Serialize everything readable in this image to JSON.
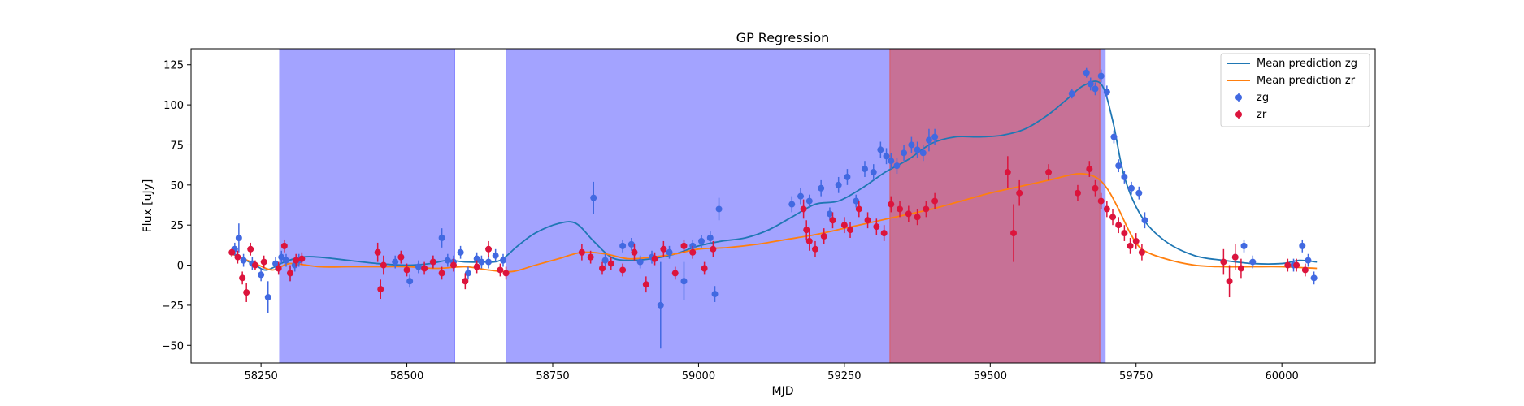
{
  "chart_data": {
    "type": "scatter",
    "title": "GP Regression",
    "xlabel": "MJD",
    "ylabel": "Flux [uJy]",
    "xlim": [
      58130,
      60160
    ],
    "ylim": [
      -61,
      135
    ],
    "xticks": [
      58250,
      58500,
      58750,
      59000,
      59250,
      59500,
      59750,
      60000
    ],
    "yticks": [
      -50,
      -25,
      0,
      25,
      50,
      75,
      100,
      125
    ],
    "grid": false,
    "legend_placement": "top-right",
    "legend": [
      {
        "label": "Mean prediction zg",
        "kind": "line",
        "color": "#1f77b4"
      },
      {
        "label": "Mean prediction zr",
        "kind": "line",
        "color": "#ff7f0e"
      },
      {
        "label": "zg",
        "kind": "marker",
        "color": "#4169e1"
      },
      {
        "label": "zr",
        "kind": "marker",
        "color": "#dc143c"
      }
    ],
    "shaded_regions": [
      {
        "x0": 58282,
        "x1": 58582,
        "color": "#6666ff",
        "opacity": 0.6
      },
      {
        "x0": 58670,
        "x1": 59697,
        "color": "#6666ff",
        "opacity": 0.6
      },
      {
        "x0": 59328,
        "x1": 59688,
        "color": "#e05050",
        "opacity": 0.6
      }
    ],
    "series": [
      {
        "name": "Mean prediction zg",
        "kind": "line",
        "color": "#1f77b4",
        "x": [
          58200,
          58240,
          58260,
          58290,
          58320,
          58350,
          58400,
          58450,
          58500,
          58540,
          58570,
          58600,
          58630,
          58660,
          58690,
          58720,
          58760,
          58790,
          58820,
          58850,
          58880,
          58920,
          58960,
          59000,
          59040,
          59080,
          59120,
          59160,
          59200,
          59240,
          59280,
          59320,
          59360,
          59400,
          59440,
          59480,
          59520,
          59560,
          59600,
          59630,
          59660,
          59690,
          59710,
          59730,
          59760,
          59800,
          59850,
          59900,
          59950,
          60000,
          60030,
          60060
        ],
        "y": [
          8,
          0,
          -3,
          2,
          5,
          5,
          3,
          1,
          0,
          1,
          3,
          2,
          2,
          3,
          12,
          20,
          26,
          26,
          15,
          5,
          3,
          4,
          7,
          12,
          15,
          17,
          22,
          30,
          38,
          40,
          48,
          58,
          66,
          76,
          80,
          80,
          81,
          85,
          94,
          103,
          112,
          113,
          90,
          55,
          30,
          15,
          6,
          3,
          1,
          1,
          3,
          2
        ]
      },
      {
        "name": "Mean prediction zr",
        "kind": "line",
        "color": "#ff7f0e",
        "x": [
          58200,
          58240,
          58270,
          58300,
          58350,
          58400,
          58450,
          58500,
          58550,
          58600,
          58640,
          58680,
          58720,
          58760,
          58800,
          58840,
          58880,
          58920,
          58960,
          59000,
          59050,
          59100,
          59150,
          59200,
          59250,
          59300,
          59350,
          59400,
          59450,
          59500,
          59550,
          59600,
          59650,
          59680,
          59700,
          59720,
          59740,
          59760,
          59800,
          59850,
          59900,
          59950,
          60000,
          60060
        ],
        "y": [
          7,
          1,
          -3,
          1,
          -1,
          -1,
          -1,
          -1,
          -2,
          -1,
          -3,
          -4,
          0,
          4,
          8,
          7,
          4,
          5,
          7,
          10,
          11,
          13,
          16,
          19,
          23,
          27,
          31,
          35,
          40,
          45,
          49,
          53,
          57,
          55,
          48,
          35,
          20,
          10,
          4,
          0,
          -1,
          -1,
          -1,
          -2
        ]
      },
      {
        "name": "zg",
        "kind": "errorbar",
        "color": "#4169e1",
        "x": [
          58205,
          58212,
          58220,
          58235,
          58250,
          58262,
          58275,
          58285,
          58293,
          58300,
          58308,
          58315,
          58480,
          58490,
          58505,
          58520,
          58545,
          58560,
          58570,
          58580,
          58592,
          58605,
          58620,
          58628,
          58640,
          58652,
          58665,
          58820,
          58840,
          58870,
          58885,
          58900,
          58920,
          58935,
          58950,
          58975,
          58990,
          59005,
          59020,
          59028,
          59035,
          59160,
          59175,
          59190,
          59210,
          59225,
          59240,
          59255,
          59270,
          59285,
          59300,
          59312,
          59322,
          59330,
          59340,
          59352,
          59365,
          59375,
          59385,
          59395,
          59405,
          59640,
          59665,
          59672,
          59680,
          59690,
          59700,
          59712,
          59720,
          59730,
          59742,
          59755,
          59765,
          59920,
          59935,
          59950,
          60020,
          60035,
          60045,
          60055
        ],
        "y": [
          10,
          17,
          3,
          1,
          -6,
          -20,
          1,
          5,
          3,
          -5,
          0,
          3,
          2,
          5,
          -10,
          -1,
          2,
          17,
          3,
          2,
          8,
          -5,
          4,
          2,
          2,
          6,
          3,
          42,
          3,
          12,
          13,
          2,
          5,
          -25,
          8,
          -10,
          12,
          15,
          17,
          -18,
          35,
          38,
          43,
          40,
          48,
          32,
          50,
          55,
          40,
          60,
          58,
          72,
          68,
          65,
          62,
          70,
          75,
          72,
          70,
          78,
          80,
          107,
          120,
          113,
          110,
          118,
          108,
          80,
          62,
          55,
          48,
          45,
          28,
          5,
          12,
          2,
          0,
          12,
          3,
          -8
        ],
        "err": [
          4,
          9,
          4,
          4,
          4,
          10,
          4,
          4,
          4,
          5,
          4,
          4,
          4,
          4,
          4,
          4,
          4,
          6,
          4,
          4,
          4,
          4,
          4,
          4,
          4,
          4,
          4,
          10,
          4,
          4,
          4,
          4,
          4,
          27,
          4,
          12,
          4,
          4,
          4,
          5,
          7,
          5,
          5,
          4,
          5,
          4,
          5,
          5,
          4,
          5,
          5,
          5,
          5,
          5,
          5,
          5,
          5,
          5,
          5,
          7,
          5,
          3,
          3,
          4,
          4,
          4,
          4,
          4,
          4,
          4,
          4,
          4,
          5,
          4,
          4,
          4,
          4,
          4,
          4,
          4
        ]
      },
      {
        "name": "zr",
        "kind": "errorbar",
        "color": "#dc143c",
        "x": [
          58200,
          58210,
          58218,
          58225,
          58232,
          58240,
          58255,
          58280,
          58290,
          58300,
          58310,
          58320,
          58450,
          58455,
          58460,
          58490,
          58500,
          58530,
          58545,
          58560,
          58580,
          58600,
          58620,
          58640,
          58660,
          58670,
          58800,
          58815,
          58835,
          58850,
          58870,
          58890,
          58910,
          58925,
          58940,
          58960,
          58975,
          58990,
          59010,
          59025,
          59180,
          59185,
          59190,
          59200,
          59215,
          59230,
          59250,
          59260,
          59275,
          59290,
          59305,
          59318,
          59330,
          59345,
          59360,
          59375,
          59390,
          59405,
          59530,
          59540,
          59550,
          59600,
          59650,
          59670,
          59680,
          59690,
          59700,
          59710,
          59720,
          59730,
          59740,
          59750,
          59760,
          59900,
          59910,
          59920,
          59930,
          60010,
          60025,
          60040
        ],
        "y": [
          8,
          5,
          -8,
          -17,
          10,
          0,
          2,
          -2,
          12,
          -5,
          3,
          4,
          8,
          -15,
          0,
          5,
          -3,
          -2,
          2,
          -5,
          0,
          -10,
          -1,
          10,
          -3,
          -5,
          8,
          5,
          -2,
          1,
          -3,
          8,
          -12,
          4,
          10,
          -5,
          12,
          8,
          -2,
          10,
          35,
          22,
          15,
          10,
          18,
          28,
          25,
          22,
          35,
          28,
          24,
          20,
          38,
          35,
          32,
          30,
          35,
          40,
          58,
          20,
          45,
          58,
          45,
          60,
          48,
          40,
          35,
          30,
          25,
          20,
          12,
          15,
          8,
          2,
          -10,
          5,
          -2,
          0,
          0,
          -3
        ],
        "err": [
          3,
          4,
          4,
          6,
          4,
          3,
          4,
          4,
          4,
          5,
          4,
          4,
          6,
          6,
          6,
          4,
          4,
          4,
          4,
          4,
          4,
          5,
          4,
          5,
          4,
          4,
          5,
          4,
          4,
          4,
          4,
          5,
          5,
          4,
          5,
          4,
          4,
          4,
          4,
          5,
          6,
          6,
          6,
          5,
          5,
          5,
          5,
          5,
          5,
          5,
          5,
          5,
          5,
          5,
          5,
          5,
          5,
          5,
          10,
          18,
          8,
          5,
          5,
          5,
          5,
          5,
          5,
          5,
          5,
          5,
          5,
          5,
          5,
          8,
          10,
          8,
          6,
          4,
          4,
          4
        ]
      }
    ]
  }
}
